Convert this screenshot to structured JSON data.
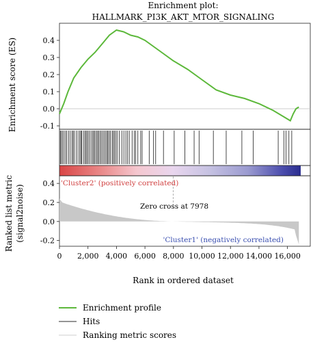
{
  "chart_data": {
    "type": "line",
    "title_line1": "Enrichment plot:",
    "title_line2": "HALLMARK_PI3K_AKT_MTOR_SIGNALING",
    "es_panel": {
      "ylabel": "Enrichment score (ES)",
      "ylim": [
        -0.12,
        0.5
      ],
      "yticks": [
        "0.4",
        "0.3",
        "0.2",
        "0.1",
        "0.0",
        "-0.1"
      ],
      "ytick_values": [
        0.4,
        0.3,
        0.2,
        0.1,
        0.0,
        -0.1
      ],
      "series_color": "#5cb83a",
      "points": [
        [
          0,
          -0.03
        ],
        [
          300,
          0.03
        ],
        [
          600,
          0.1
        ],
        [
          1000,
          0.18
        ],
        [
          1500,
          0.24
        ],
        [
          2000,
          0.29
        ],
        [
          2500,
          0.33
        ],
        [
          3000,
          0.38
        ],
        [
          3500,
          0.43
        ],
        [
          4000,
          0.46
        ],
        [
          4500,
          0.45
        ],
        [
          5000,
          0.43
        ],
        [
          5500,
          0.42
        ],
        [
          6000,
          0.4
        ],
        [
          7000,
          0.34
        ],
        [
          8000,
          0.28
        ],
        [
          9000,
          0.23
        ],
        [
          10000,
          0.17
        ],
        [
          11000,
          0.11
        ],
        [
          12000,
          0.08
        ],
        [
          13000,
          0.06
        ],
        [
          14000,
          0.03
        ],
        [
          15000,
          -0.01
        ],
        [
          15800,
          -0.05
        ],
        [
          16200,
          -0.07
        ],
        [
          16400,
          -0.03
        ],
        [
          16600,
          0.0
        ],
        [
          16800,
          0.01
        ]
      ]
    },
    "hits": [
      60,
      130,
      220,
      320,
      430,
      520,
      650,
      760,
      880,
      960,
      1040,
      1180,
      1300,
      1420,
      1500,
      1560,
      1680,
      1780,
      1860,
      1940,
      2030,
      2130,
      2250,
      2340,
      2420,
      2500,
      2600,
      2680,
      2760,
      2860,
      2940,
      3040,
      3140,
      3240,
      3330,
      3400,
      3490,
      3580,
      3700,
      3780,
      3860,
      3960,
      4060,
      4200,
      4380,
      4520,
      4660,
      4780,
      4900,
      5100,
      5250,
      5350,
      5500,
      5700,
      5800,
      6300,
      6600,
      6750,
      7300,
      8050,
      8800,
      9450,
      9800,
      10800,
      11700,
      12800,
      13600,
      15350,
      15750,
      15900,
      16100,
      16300
    ],
    "cluster_pos_label": "'Cluster2' (positively correlated)",
    "cluster_neg_label": "'Cluster1' (negatively correlated)",
    "metric_panel": {
      "ylabel_line1": "Ranked list metric",
      "ylabel_line2": "(signal2noise)",
      "ylim": [
        -0.26,
        0.48
      ],
      "yticks": [
        "0.4",
        "0.2",
        "0.0",
        "-0.2"
      ],
      "ytick_values": [
        0.4,
        0.2,
        0.0,
        -0.2
      ],
      "zero_cross_label": "Zero cross at 7978",
      "zero_cross": 7978,
      "fill_color": "#c8c8c8"
    },
    "x": {
      "xlabel": "Rank in ordered dataset",
      "xlim": [
        0,
        17600
      ],
      "xticks": [
        "0",
        "2,000",
        "4,000",
        "6,000",
        "8,000",
        "10,000",
        "12,000",
        "14,000",
        "16,000"
      ],
      "xtick_values": [
        0,
        2000,
        4000,
        6000,
        8000,
        10000,
        12000,
        14000,
        16000
      ],
      "n_genes": 16800
    },
    "legend": [
      {
        "label": "Enrichment profile",
        "color": "#5cb83a"
      },
      {
        "label": "Hits",
        "color": "#707070"
      },
      {
        "label": "Ranking metric scores",
        "color": "#dddddd"
      }
    ]
  }
}
